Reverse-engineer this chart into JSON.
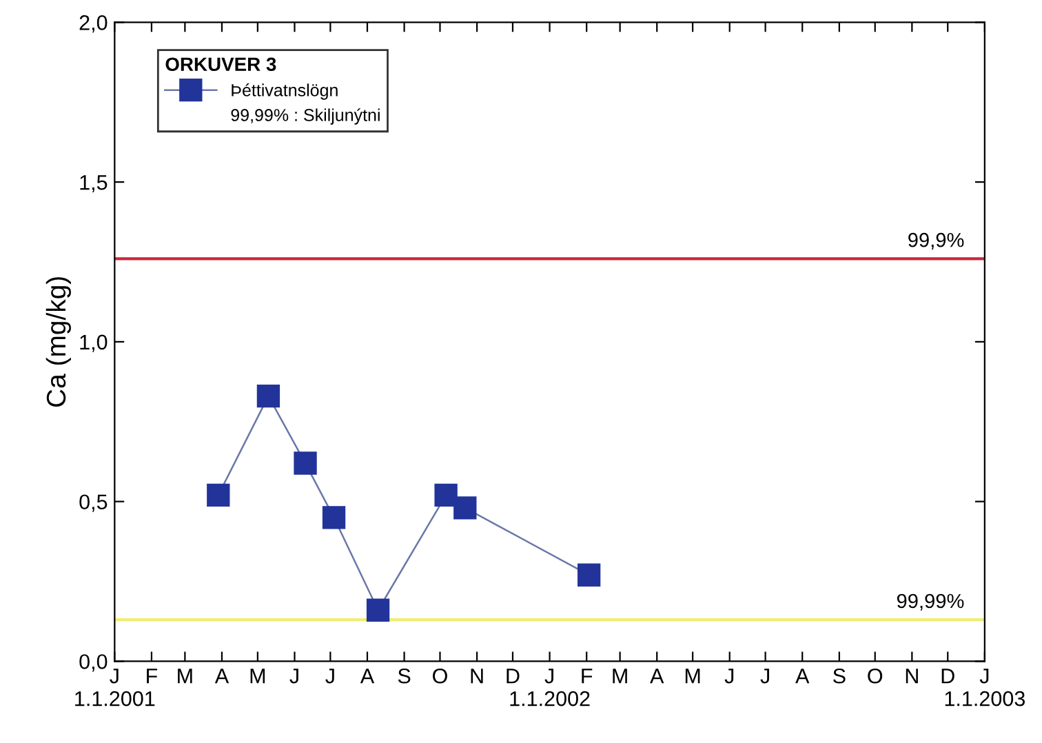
{
  "chart_data": {
    "type": "line",
    "ylabel": "Ca (mg/kg)",
    "legend_title": "ORKUVER 3",
    "x": [
      "2001-03-29",
      "2001-05-10",
      "2001-06-10",
      "2001-07-04",
      "2001-08-10",
      "2001-10-06",
      "2001-10-22",
      "2002-02-03"
    ],
    "series": [
      {
        "name": "Þéttivatnslögn",
        "color": "#22349a",
        "values": [
          0.52,
          0.83,
          0.62,
          0.45,
          0.16,
          0.52,
          0.48,
          0.27
        ]
      }
    ],
    "marker": "square",
    "line_style": "solid",
    "grid": false,
    "legend": "top left",
    "xlim": [
      "2001-01-01",
      "2003-01-01"
    ],
    "xticks": [
      {
        "value": "2001-01-01",
        "label": "J\n1.1.2001"
      },
      {
        "value": "2001-02-01",
        "label": "F"
      },
      {
        "value": "2001-03-01",
        "label": "M"
      },
      {
        "value": "2001-04-01",
        "label": "A"
      },
      {
        "value": "2001-05-01",
        "label": "M"
      },
      {
        "value": "2001-06-01",
        "label": "J"
      },
      {
        "value": "2001-07-01",
        "label": "J"
      },
      {
        "value": "2001-08-01",
        "label": "A"
      },
      {
        "value": "2001-09-01",
        "label": "S"
      },
      {
        "value": "2001-10-01",
        "label": "O"
      },
      {
        "value": "2001-11-01",
        "label": "N"
      },
      {
        "value": "2001-12-01",
        "label": "D"
      },
      {
        "value": "2002-01-01",
        "label": "J\n1.1.2002"
      },
      {
        "value": "2002-02-01",
        "label": "F"
      },
      {
        "value": "2002-03-01",
        "label": "M"
      },
      {
        "value": "2002-04-01",
        "label": "A"
      },
      {
        "value": "2002-05-01",
        "label": "M"
      },
      {
        "value": "2002-06-01",
        "label": "J"
      },
      {
        "value": "2002-07-01",
        "label": "J"
      },
      {
        "value": "2002-08-01",
        "label": "A"
      },
      {
        "value": "2002-09-01",
        "label": "S"
      },
      {
        "value": "2002-10-01",
        "label": "O"
      },
      {
        "value": "2002-11-01",
        "label": "N"
      },
      {
        "value": "2002-12-01",
        "label": "D"
      },
      {
        "value": "2003-01-01",
        "label": "J\n1.1.2003"
      }
    ],
    "ylim": [
      0,
      2
    ],
    "yticks": [
      {
        "value": 0,
        "label": "0,0"
      },
      {
        "value": 0.5,
        "label": "0,5"
      },
      {
        "value": 1,
        "label": "1,0"
      },
      {
        "value": 1.5,
        "label": "1,5"
      },
      {
        "value": 2,
        "label": "2,0"
      }
    ],
    "ref_lines": [
      {
        "axis": "y",
        "value": 1.26,
        "color": "#c8283c"
      },
      {
        "axis": "y",
        "value": 0.13,
        "color": "#f0ee70"
      }
    ],
    "annotations": [
      "99,99% : Skiljunýtni",
      {
        "text": "99,9%",
        "x": "2002-12-15",
        "y": 1.26
      },
      {
        "text": "99,99%",
        "x": "2002-12-15",
        "y": 0.13
      }
    ]
  }
}
